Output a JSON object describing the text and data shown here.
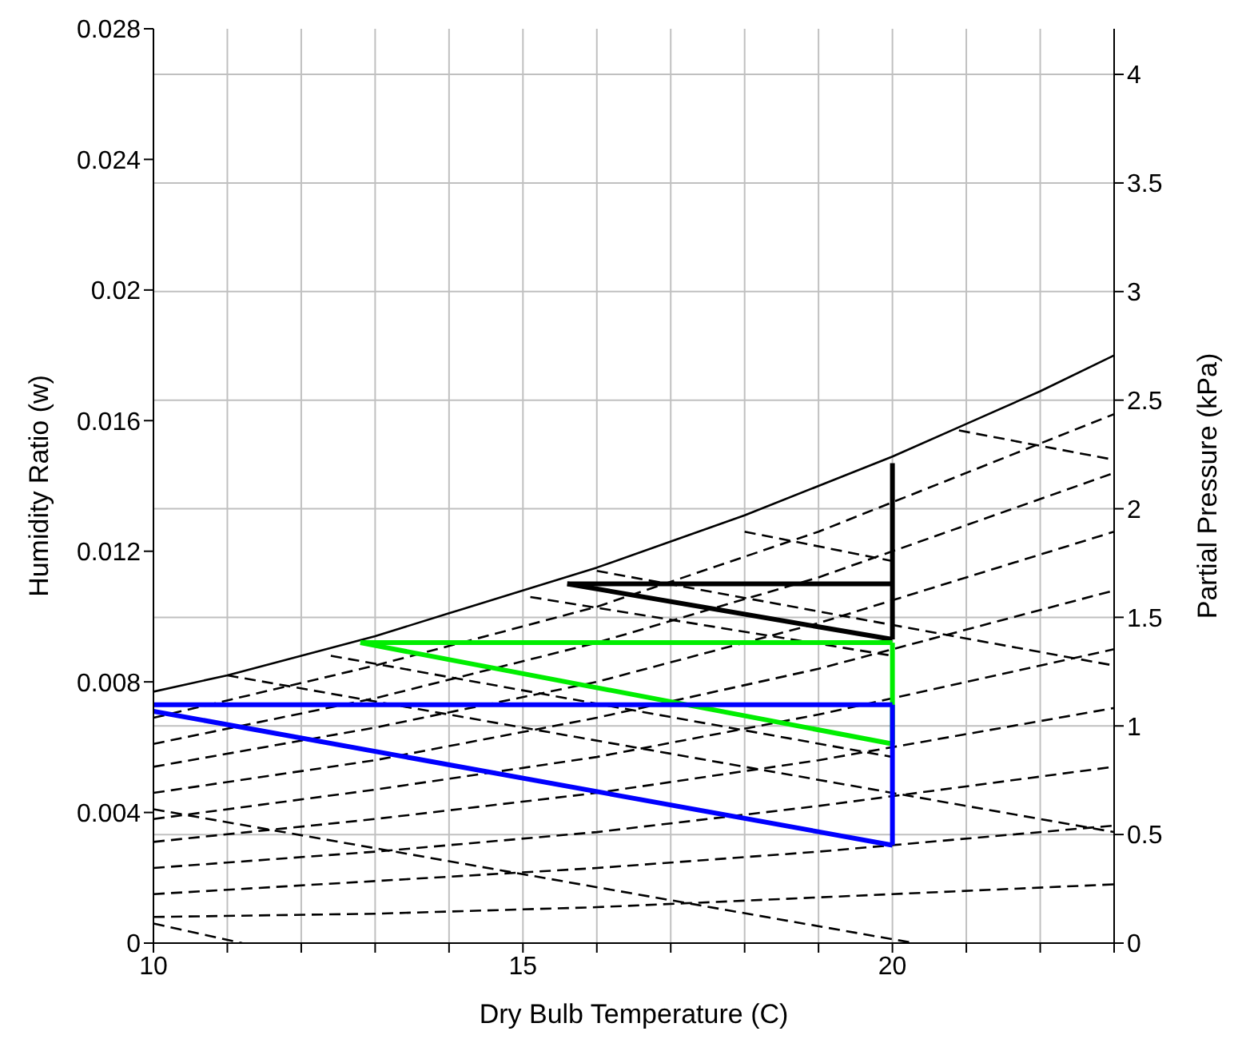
{
  "chart_data": {
    "type": "line",
    "xlabel": "Dry Bulb Temperature (C)",
    "ylabel": "Humidity Ratio (w)",
    "y2label": "Partial Pressure (kPa)",
    "xlim": [
      10,
      23
    ],
    "xticks": [
      10,
      {
        "value": 11,
        "label": null
      },
      {
        "value": 12,
        "label": null
      },
      {
        "value": 13,
        "label": null
      },
      {
        "value": 14,
        "label": null
      },
      15,
      {
        "value": 16,
        "label": null
      },
      {
        "value": 17,
        "label": null
      },
      {
        "value": 18,
        "label": null
      },
      {
        "value": 19,
        "label": null
      },
      20,
      {
        "value": 21,
        "label": null
      },
      {
        "value": 22,
        "label": null
      },
      {
        "value": 23,
        "label": null
      }
    ],
    "ylim": [
      0,
      0.028
    ],
    "yticks": [
      0,
      0.004,
      0.008,
      0.012,
      0.016,
      0.02,
      0.024,
      0.028
    ],
    "y2lim": [
      0,
      4.21
    ],
    "y2ticks": [
      0,
      0.5,
      1,
      1.5,
      2,
      2.5,
      3,
      3.5,
      4
    ],
    "grid": true,
    "legend": false,
    "series": [
      {
        "color": "#000000",
        "line_style": "solid",
        "x": [
          10,
          11,
          12,
          13,
          14,
          15,
          16,
          17,
          18,
          19,
          20,
          21,
          22,
          23
        ],
        "values": [
          0.0077,
          0.0082,
          0.0088,
          0.0094,
          0.0101,
          0.0108,
          0.0115,
          0.0123,
          0.0131,
          0.014,
          0.0149,
          0.0159,
          0.0169,
          0.018
        ]
      },
      {
        "color": "#000000",
        "line_style": "dashed",
        "x": [
          10,
          13,
          16,
          19,
          23
        ],
        "values": [
          0.0069,
          0.0085,
          0.0103,
          0.0126,
          0.0162
        ]
      },
      {
        "color": "#000000",
        "line_style": "dashed",
        "x": [
          10,
          13,
          16,
          19,
          23
        ],
        "values": [
          0.0061,
          0.0075,
          0.0092,
          0.0112,
          0.0144
        ]
      },
      {
        "color": "#000000",
        "line_style": "dashed",
        "x": [
          10,
          13,
          16,
          19,
          23
        ],
        "values": [
          0.0054,
          0.0066,
          0.008,
          0.0098,
          0.0126
        ]
      },
      {
        "color": "#000000",
        "line_style": "dashed",
        "x": [
          10,
          13,
          16,
          19,
          23
        ],
        "values": [
          0.0046,
          0.0056,
          0.0069,
          0.0084,
          0.0108
        ]
      },
      {
        "color": "#000000",
        "line_style": "dashed",
        "x": [
          10,
          13,
          16,
          19,
          23
        ],
        "values": [
          0.0038,
          0.0047,
          0.0057,
          0.007,
          0.009
        ]
      },
      {
        "color": "#000000",
        "line_style": "dashed",
        "x": [
          10,
          13,
          16,
          19,
          23
        ],
        "values": [
          0.0031,
          0.0038,
          0.0046,
          0.0056,
          0.0072
        ]
      },
      {
        "color": "#000000",
        "line_style": "dashed",
        "x": [
          10,
          13,
          16,
          19,
          23
        ],
        "values": [
          0.0023,
          0.0028,
          0.0034,
          0.0042,
          0.0054
        ]
      },
      {
        "color": "#000000",
        "line_style": "dashed",
        "x": [
          10,
          13,
          16,
          19,
          23
        ],
        "values": [
          0.0015,
          0.0019,
          0.0023,
          0.0028,
          0.0036
        ]
      },
      {
        "color": "#000000",
        "line_style": "dashed",
        "x": [
          10,
          13,
          16,
          19,
          23
        ],
        "values": [
          0.0008,
          0.0009,
          0.0011,
          0.0014,
          0.0018
        ]
      },
      {
        "color": "#000000",
        "line_style": "dashed",
        "x": [
          10,
          11.2
        ],
        "values": [
          0.0006,
          0
        ]
      },
      {
        "color": "#000000",
        "line_style": "dashed",
        "x": [
          10,
          20.3
        ],
        "values": [
          0.0041,
          0
        ]
      },
      {
        "color": "#000000",
        "line_style": "dashed",
        "x": [
          11,
          23
        ],
        "values": [
          0.0082,
          0.0034
        ]
      },
      {
        "color": "#000000",
        "line_style": "dashed",
        "x": [
          16,
          23
        ],
        "values": [
          0.0114,
          0.0085
        ]
      },
      {
        "color": "#000000",
        "line_style": "dashed",
        "x": [
          20.9,
          23
        ],
        "values": [
          0.0157,
          0.0148
        ]
      },
      {
        "color": "#000000",
        "line_style": "dashed",
        "x": [
          12.4,
          20
        ],
        "values": [
          0.0088,
          0.0057
        ]
      },
      {
        "color": "#000000",
        "line_style": "dashed",
        "x": [
          15.1,
          20
        ],
        "values": [
          0.0106,
          0.0088
        ]
      },
      {
        "color": "#000000",
        "line_style": "dashed",
        "x": [
          18,
          20
        ],
        "values": [
          0.0126,
          0.0117
        ]
      },
      {
        "color": "#000000",
        "line_style": "solid",
        "x": [
          15.6,
          20
        ],
        "values": [
          0.011,
          0.011
        ]
      },
      {
        "color": "#000000",
        "line_style": "solid",
        "x": [
          15.6,
          20
        ],
        "values": [
          0.011,
          0.0093
        ]
      },
      {
        "color": "#000000",
        "line_style": "solid",
        "x": [
          20,
          20
        ],
        "values": [
          0.0147,
          0.0093
        ]
      },
      {
        "color": "#00ee00",
        "line_style": "solid",
        "x": [
          12.8,
          20
        ],
        "values": [
          0.0092,
          0.0092
        ]
      },
      {
        "color": "#00ee00",
        "line_style": "solid",
        "x": [
          12.8,
          20
        ],
        "values": [
          0.0092,
          0.0061
        ]
      },
      {
        "color": "#00ee00",
        "line_style": "solid",
        "x": [
          20,
          20
        ],
        "values": [
          0.0092,
          0.0061
        ]
      },
      {
        "color": "#0000ff",
        "line_style": "solid",
        "x": [
          10,
          20
        ],
        "values": [
          0.0073,
          0.0073
        ]
      },
      {
        "color": "#0000ff",
        "line_style": "solid",
        "x": [
          10,
          20
        ],
        "values": [
          0.0071,
          0.003
        ]
      },
      {
        "color": "#0000ff",
        "line_style": "solid",
        "x": [
          20,
          20
        ],
        "values": [
          0.0073,
          0.003
        ]
      }
    ]
  }
}
